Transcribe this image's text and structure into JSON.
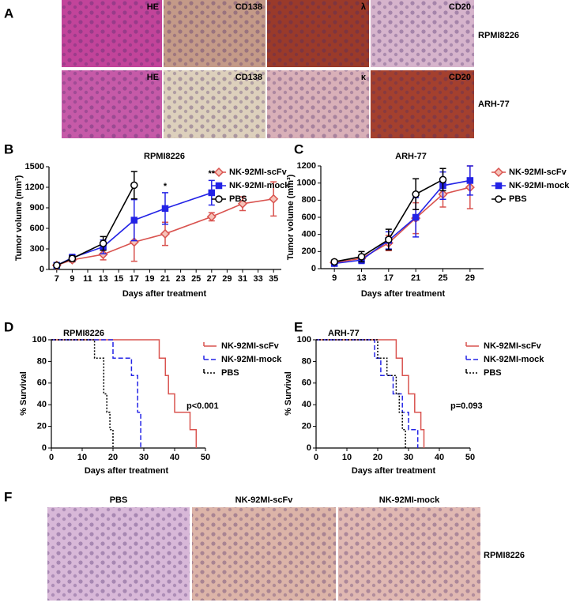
{
  "panel_labels": [
    "A",
    "B",
    "C",
    "D",
    "E",
    "F"
  ],
  "panel_a": {
    "row_labels": [
      "RPMI8226",
      "ARH-77"
    ],
    "image_labels": [
      [
        "HE",
        "CD138",
        "λ",
        "CD20"
      ],
      [
        "HE",
        "CD138",
        "κ",
        "CD20"
      ]
    ]
  },
  "panel_f": {
    "titles": [
      "PBS",
      "NK-92MI-scFv",
      "NK-92MI-mock"
    ],
    "row_label": "RPMI8226"
  },
  "chart_data": [
    {
      "type": "line",
      "title": "RPMI8226",
      "x_label": "Days after treatment",
      "y_label": "Tumor volume (mm³)",
      "x": [
        7,
        9,
        13,
        17,
        21,
        27,
        31,
        35
      ],
      "xlim": [
        6,
        36
      ],
      "xticks": [
        7,
        9,
        11,
        13,
        15,
        17,
        19,
        21,
        23,
        25,
        27,
        29,
        31,
        33,
        35
      ],
      "ylim": [
        0,
        1500
      ],
      "yticks": [
        0,
        300,
        600,
        900,
        1200,
        1500
      ],
      "series": [
        {
          "name": "NK-92MI-scFv",
          "color": "#d9534f",
          "marker": "diamond",
          "values": [
            60,
            140,
            220,
            400,
            520,
            770,
            960,
            1030
          ],
          "errors": [
            20,
            30,
            80,
            280,
            170,
            60,
            100,
            250
          ]
        },
        {
          "name": "NK-92MI-mock",
          "color": "#2323e6",
          "marker": "square",
          "values": [
            60,
            170,
            330,
            720,
            890,
            1120,
            null,
            null
          ],
          "errors": [
            20,
            50,
            100,
            300,
            230,
            180,
            null,
            null
          ]
        },
        {
          "name": "PBS",
          "color": "#000000",
          "marker": "circle",
          "values": [
            60,
            160,
            380,
            1230,
            null,
            null,
            null,
            null
          ],
          "errors": [
            20,
            40,
            100,
            200,
            null,
            null,
            null,
            null
          ]
        }
      ],
      "annotations": [
        {
          "text": "*",
          "x": 21
        },
        {
          "text": "**",
          "x": 27
        }
      ]
    },
    {
      "type": "line",
      "title": "ARH-77",
      "x_label": "Days after treatment",
      "y_label": "Tumor volume (mm³)",
      "x": [
        9,
        13,
        17,
        21,
        25,
        29
      ],
      "xlim": [
        7,
        31
      ],
      "xticks": [
        9,
        13,
        17,
        21,
        25,
        29
      ],
      "ylim": [
        0,
        1200
      ],
      "yticks": [
        0,
        200,
        400,
        600,
        800,
        1000,
        1200
      ],
      "series": [
        {
          "name": "NK-92MI-scFv",
          "color": "#d9534f",
          "marker": "diamond",
          "values": [
            70,
            120,
            300,
            590,
            870,
            950
          ],
          "errors": [
            20,
            40,
            90,
            180,
            150,
            250
          ]
        },
        {
          "name": "NK-92MI-mock",
          "color": "#2323e6",
          "marker": "square",
          "values": [
            60,
            100,
            330,
            600,
            970,
            1030
          ],
          "errors": [
            20,
            40,
            100,
            230,
            160,
            170
          ]
        },
        {
          "name": "PBS",
          "color": "#000000",
          "marker": "circle",
          "values": [
            80,
            140,
            340,
            870,
            1040,
            null
          ],
          "errors": [
            20,
            60,
            120,
            180,
            130,
            null
          ]
        }
      ]
    },
    {
      "type": "step",
      "title": "RPMI8226",
      "x_label": "Days after treatment",
      "y_label": "% Survival",
      "xlim": [
        0,
        50
      ],
      "xticks": [
        0,
        10,
        20,
        30,
        40,
        50
      ],
      "ylim": [
        0,
        100
      ],
      "yticks": [
        0,
        20,
        40,
        60,
        80,
        100
      ],
      "series": [
        {
          "name": "NK-92MI-scFv",
          "color": "#d9534f",
          "line_style": "solid",
          "x": [
            0,
            35,
            37,
            38,
            40,
            45,
            47
          ],
          "values": [
            100,
            83,
            67,
            50,
            33,
            17,
            0
          ]
        },
        {
          "name": "NK-92MI-mock",
          "color": "#2323e6",
          "line_style": "dashed",
          "x": [
            0,
            20,
            26,
            28,
            29
          ],
          "values": [
            100,
            83,
            67,
            33,
            0
          ]
        },
        {
          "name": "PBS",
          "color": "#000000",
          "line_style": "dotted",
          "x": [
            0,
            14,
            17,
            18,
            19,
            20
          ],
          "values": [
            100,
            83,
            50,
            33,
            17,
            0
          ]
        }
      ],
      "annotations": [
        {
          "text": "p<0.001"
        }
      ]
    },
    {
      "type": "step",
      "title": "ARH-77",
      "x_label": "Days after treatment",
      "y_label": "% Survival",
      "xlim": [
        0,
        50
      ],
      "xticks": [
        0,
        10,
        20,
        30,
        40,
        50
      ],
      "ylim": [
        0,
        100
      ],
      "yticks": [
        0,
        20,
        40,
        60,
        80,
        100
      ],
      "series": [
        {
          "name": "NK-92MI-scFv",
          "color": "#d9534f",
          "line_style": "solid",
          "x": [
            0,
            26,
            28,
            30,
            32,
            34,
            35
          ],
          "values": [
            100,
            83,
            67,
            50,
            33,
            17,
            0
          ]
        },
        {
          "name": "NK-92MI-mock",
          "color": "#2323e6",
          "line_style": "dashed",
          "x": [
            0,
            19,
            21,
            25,
            28,
            30,
            33
          ],
          "values": [
            100,
            83,
            67,
            50,
            33,
            17,
            0
          ]
        },
        {
          "name": "PBS",
          "color": "#000000",
          "line_style": "dotted",
          "x": [
            0,
            20,
            23,
            26,
            27,
            28,
            29
          ],
          "values": [
            100,
            83,
            67,
            50,
            33,
            17,
            0
          ]
        }
      ],
      "annotations": [
        {
          "text": "p=0.093"
        }
      ]
    }
  ]
}
